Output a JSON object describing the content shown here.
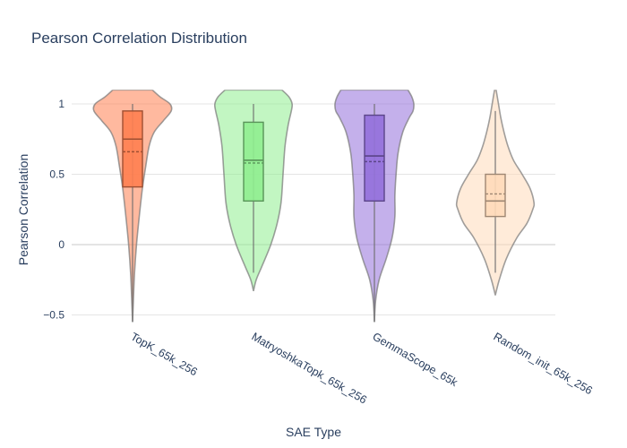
{
  "chart_data": {
    "type": "violin",
    "title": "Pearson Correlation Distribution",
    "xlabel": "SAE Type",
    "ylabel": "Pearson Correlation",
    "ylim": [
      -0.55,
      1.1
    ],
    "yticks": [
      -0.5,
      0,
      0.5,
      1
    ],
    "ytick_labels": [
      "−0.5",
      "0",
      "0.5",
      "1"
    ],
    "categories": [
      "TopK_65k_256",
      "MatryoshkaTopk_65k_256",
      "GemmaScope_65k",
      "Random_init_65k_256"
    ],
    "series": [
      {
        "name": "TopK_65k_256",
        "color": "#ff7f50",
        "stats": {
          "min": -0.55,
          "q1": 0.41,
          "median": 0.75,
          "mean": 0.66,
          "q3": 0.95,
          "max": 1.0
        },
        "density": [
          [
            -0.55,
            0.0
          ],
          [
            -0.4,
            0.02
          ],
          [
            -0.2,
            0.05
          ],
          [
            0.0,
            0.1
          ],
          [
            0.2,
            0.17
          ],
          [
            0.4,
            0.25
          ],
          [
            0.55,
            0.33
          ],
          [
            0.7,
            0.42
          ],
          [
            0.8,
            0.55
          ],
          [
            0.88,
            0.78
          ],
          [
            0.95,
            0.98
          ],
          [
            1.0,
            0.95
          ],
          [
            1.05,
            0.7
          ],
          [
            1.1,
            0.5
          ]
        ]
      },
      {
        "name": "MatryoshkaTopk_65k_256",
        "color": "#90ee90",
        "stats": {
          "min": -0.2,
          "q1": 0.31,
          "median": 0.6,
          "mean": 0.58,
          "q3": 0.87,
          "max": 1.0
        },
        "density": [
          [
            -0.33,
            0.0
          ],
          [
            -0.25,
            0.07
          ],
          [
            -0.15,
            0.22
          ],
          [
            0.0,
            0.44
          ],
          [
            0.15,
            0.6
          ],
          [
            0.3,
            0.7
          ],
          [
            0.5,
            0.75
          ],
          [
            0.7,
            0.8
          ],
          [
            0.85,
            0.88
          ],
          [
            0.95,
            0.96
          ],
          [
            1.0,
            0.98
          ],
          [
            1.05,
            0.9
          ],
          [
            1.1,
            0.72
          ]
        ]
      },
      {
        "name": "GemmaScope_65k",
        "color": "#9370db",
        "stats": {
          "min": -0.55,
          "q1": 0.31,
          "median": 0.63,
          "mean": 0.59,
          "q3": 0.92,
          "max": 1.0
        },
        "density": [
          [
            -0.55,
            0.0
          ],
          [
            -0.4,
            0.03
          ],
          [
            -0.25,
            0.12
          ],
          [
            -0.1,
            0.3
          ],
          [
            0.05,
            0.45
          ],
          [
            0.2,
            0.52
          ],
          [
            0.35,
            0.52
          ],
          [
            0.5,
            0.55
          ],
          [
            0.65,
            0.6
          ],
          [
            0.8,
            0.72
          ],
          [
            0.9,
            0.88
          ],
          [
            0.95,
            0.98
          ],
          [
            1.0,
            1.0
          ],
          [
            1.05,
            0.95
          ],
          [
            1.1,
            0.85
          ]
        ]
      },
      {
        "name": "Random_init_65k_256",
        "color": "#ffdab9",
        "stats": {
          "min": -0.2,
          "q1": 0.2,
          "median": 0.31,
          "mean": 0.36,
          "q3": 0.5,
          "max": 0.95
        },
        "density": [
          [
            -0.36,
            0.0
          ],
          [
            -0.25,
            0.1
          ],
          [
            -0.1,
            0.28
          ],
          [
            0.05,
            0.55
          ],
          [
            0.15,
            0.8
          ],
          [
            0.25,
            0.95
          ],
          [
            0.3,
            0.98
          ],
          [
            0.4,
            0.88
          ],
          [
            0.5,
            0.68
          ],
          [
            0.6,
            0.46
          ],
          [
            0.7,
            0.32
          ],
          [
            0.8,
            0.22
          ],
          [
            0.9,
            0.14
          ],
          [
            1.0,
            0.08
          ],
          [
            1.05,
            0.05
          ],
          [
            1.1,
            0.02
          ]
        ]
      }
    ]
  }
}
